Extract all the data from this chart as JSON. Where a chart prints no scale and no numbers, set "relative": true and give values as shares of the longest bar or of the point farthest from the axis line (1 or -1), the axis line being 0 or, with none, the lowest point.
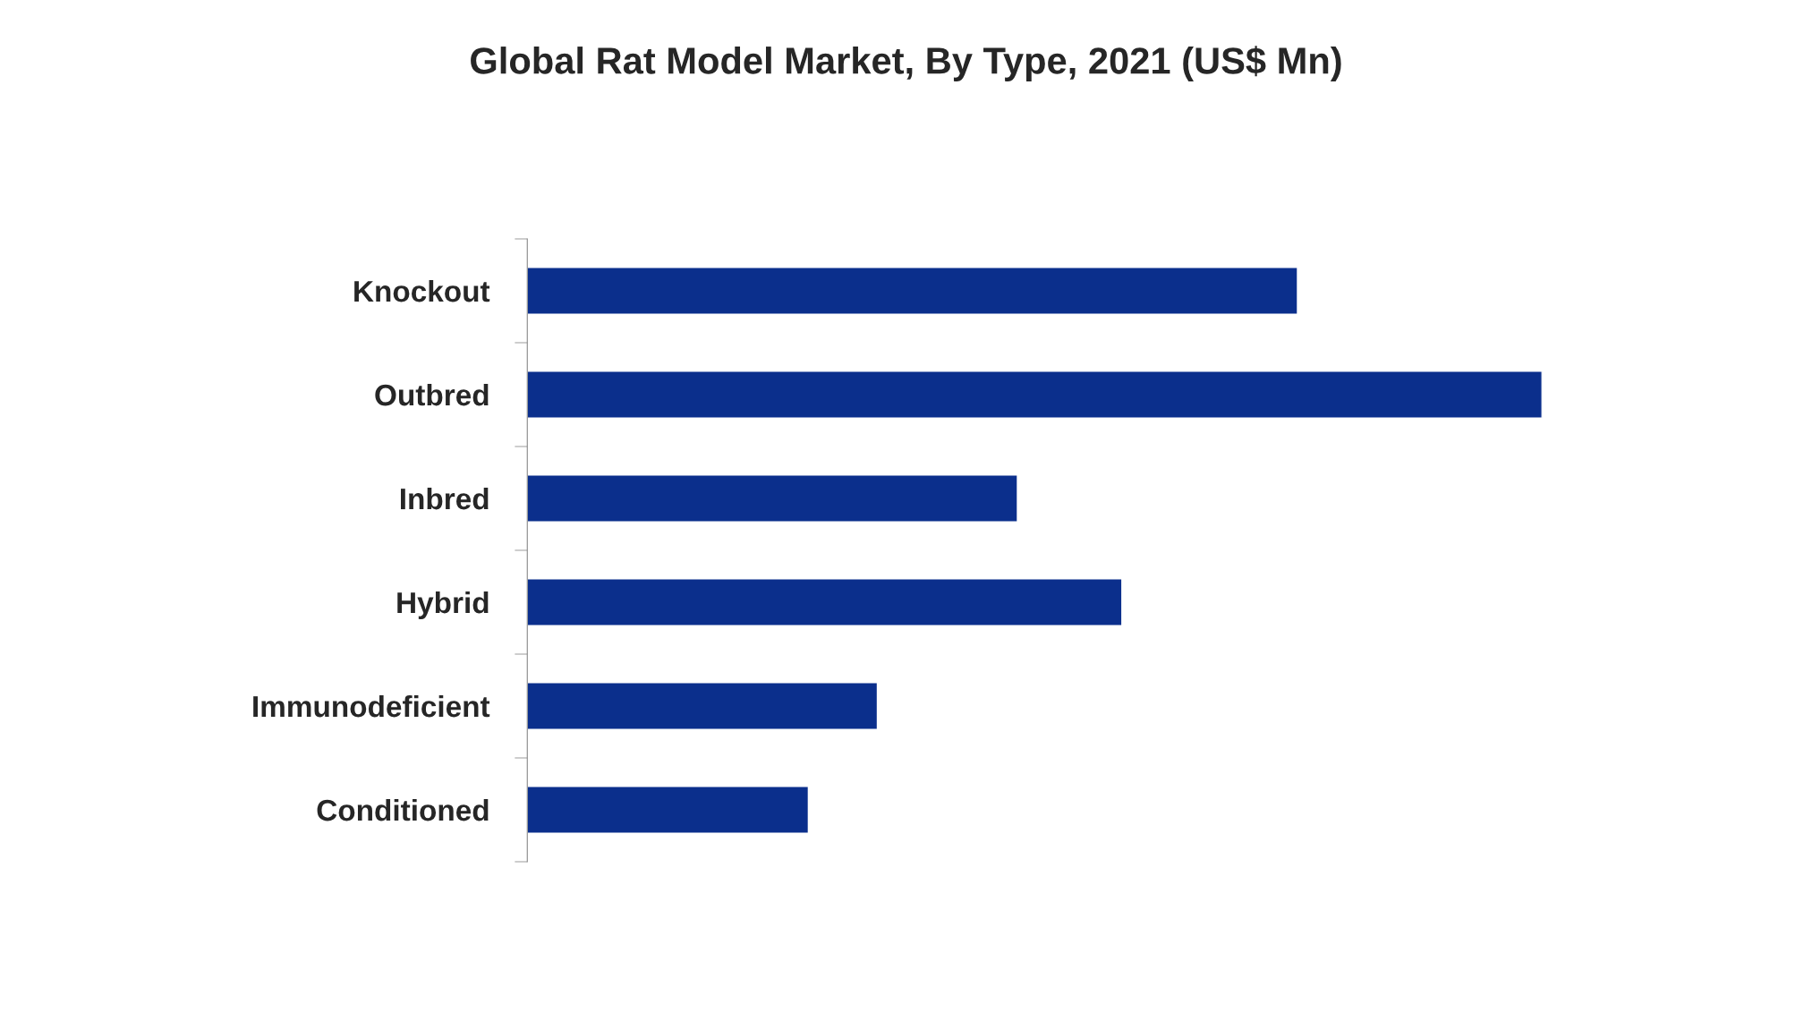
{
  "chart_data": {
    "type": "bar",
    "orientation": "horizontal",
    "relative": true,
    "title": "Global Rat Model Market, By Type, 2021 (US$ Mn)",
    "categories": [
      "Knockout",
      "Outbred",
      "Inbred",
      "Hybrid",
      "Immunodeficient",
      "Conditioned"
    ],
    "values": [
      0.759,
      1,
      0.483,
      0.586,
      0.345,
      0.277
    ],
    "color": "#0b2f8c",
    "grid": false,
    "legend": false
  }
}
